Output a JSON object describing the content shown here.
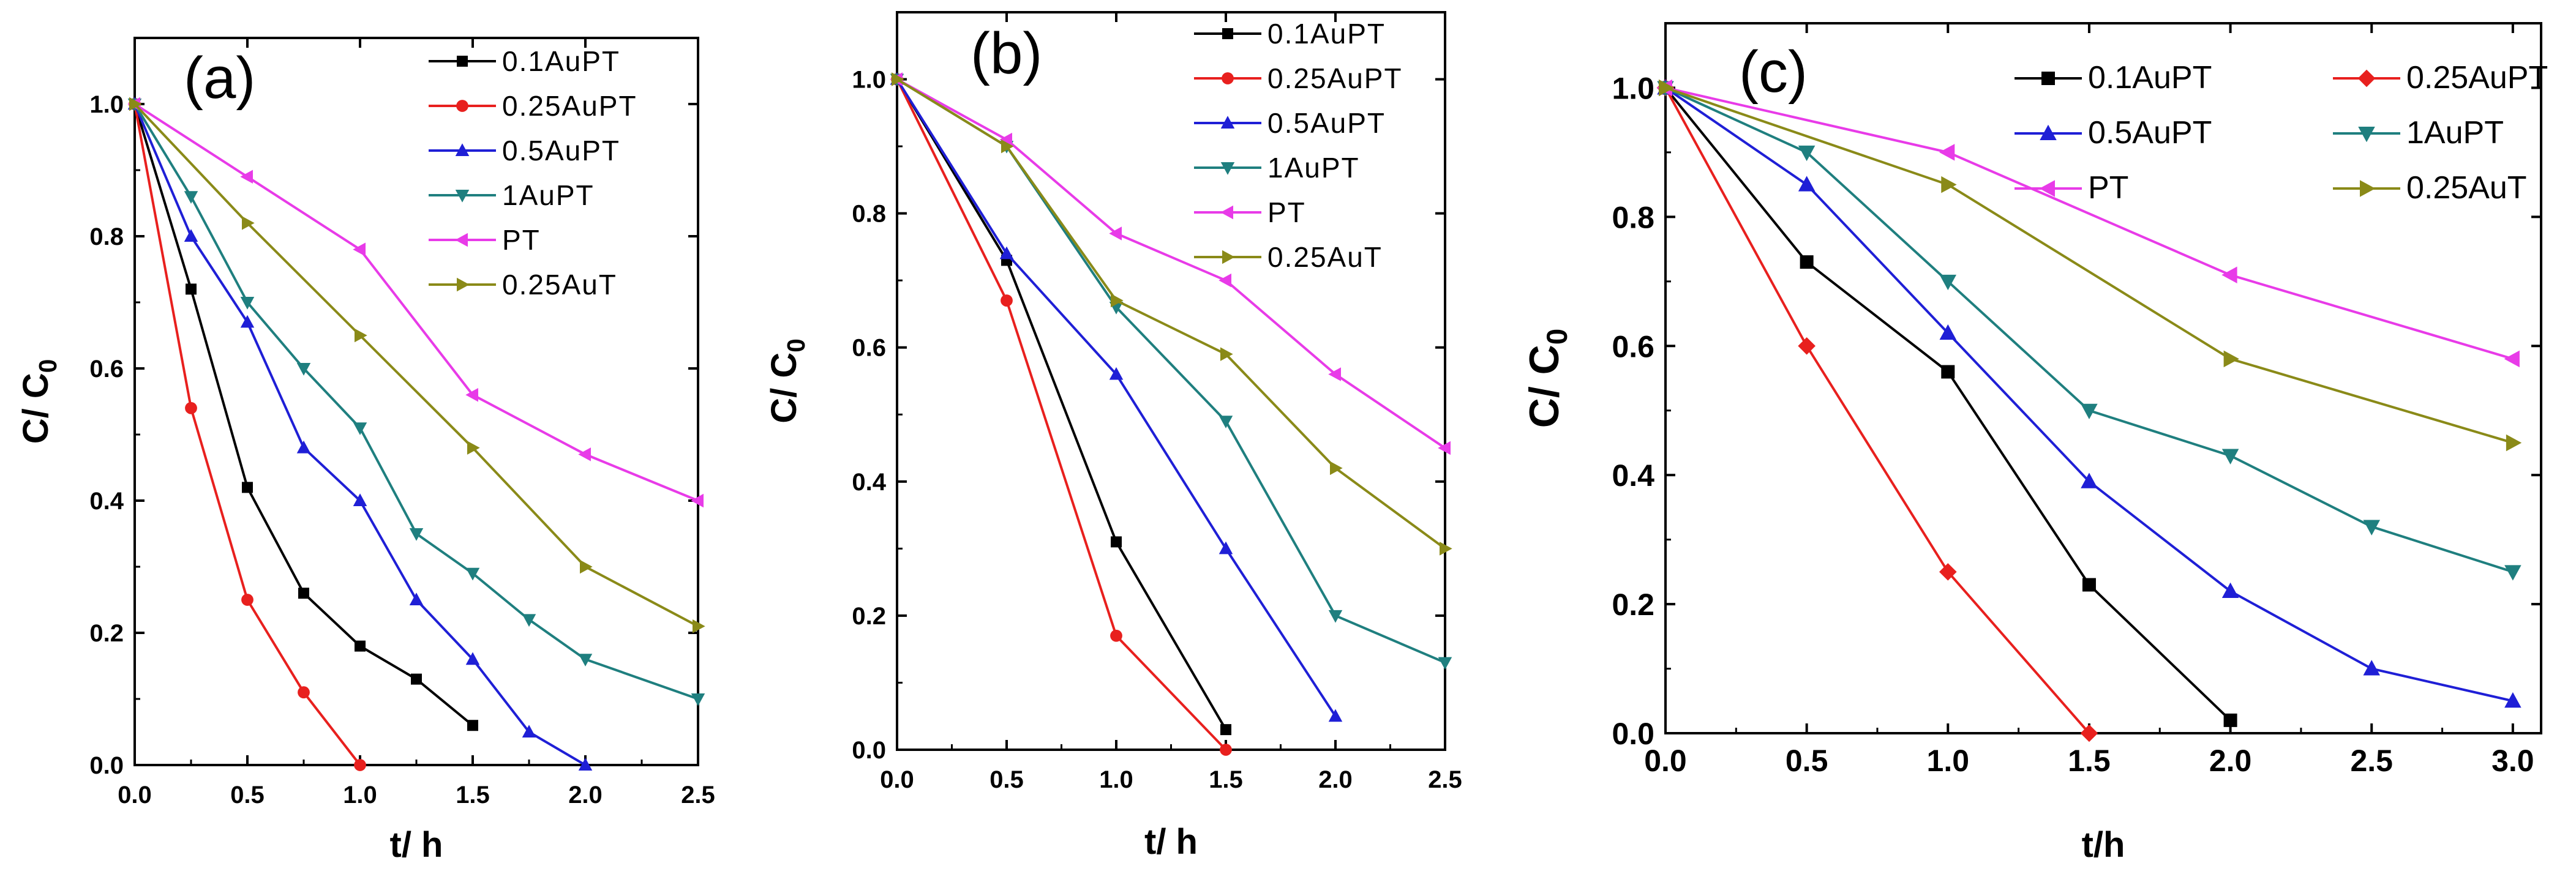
{
  "chart_data": [
    {
      "type": "line",
      "panel_label": "(a)",
      "xlabel": "t/ h",
      "ylabel": "C/ C",
      "ylabel_sub": "0",
      "xlim": [
        0,
        2.5
      ],
      "ylim": [
        0,
        1.1
      ],
      "xticks": [
        0.0,
        0.5,
        1.0,
        1.5,
        2.0,
        2.5
      ],
      "xtick_labels": [
        "0.0",
        "0.5",
        "1.0",
        "1.5",
        "2.0",
        "2.5"
      ],
      "yticks": [
        0.0,
        0.2,
        0.4,
        0.6,
        0.8,
        1.0
      ],
      "ytick_labels": [
        "0.0",
        "0.2",
        "0.4",
        "0.6",
        "0.8",
        "1.0"
      ],
      "legend_position": "top-right",
      "series": [
        {
          "name": "0.1AuPT",
          "color": "#000000",
          "marker": "square",
          "x": [
            0,
            0.25,
            0.5,
            0.75,
            1.0,
            1.25,
            1.5
          ],
          "y": [
            1.0,
            0.72,
            0.42,
            0.26,
            0.18,
            0.13,
            0.06
          ]
        },
        {
          "name": "0.25AuPT",
          "color": "#e8201e",
          "marker": "circle",
          "x": [
            0,
            0.25,
            0.5,
            0.75,
            1.0
          ],
          "y": [
            1.0,
            0.54,
            0.25,
            0.11,
            0.0
          ]
        },
        {
          "name": "0.5AuPT",
          "color": "#1f1fd6",
          "marker": "triangle-up",
          "x": [
            0,
            0.25,
            0.5,
            0.75,
            1.0,
            1.25,
            1.5,
            1.75,
            2.0
          ],
          "y": [
            1.0,
            0.8,
            0.67,
            0.48,
            0.4,
            0.25,
            0.16,
            0.05,
            0.0
          ]
        },
        {
          "name": "1AuPT",
          "color": "#1f7f7f",
          "marker": "triangle-down",
          "x": [
            0,
            0.25,
            0.5,
            0.75,
            1.0,
            1.25,
            1.5,
            1.75,
            2.0,
            2.5
          ],
          "y": [
            1.0,
            0.86,
            0.7,
            0.6,
            0.51,
            0.35,
            0.29,
            0.22,
            0.16,
            0.1
          ]
        },
        {
          "name": "PT",
          "color": "#e83be8",
          "marker": "triangle-left",
          "x": [
            0,
            0.5,
            1.0,
            1.5,
            2.0,
            2.5
          ],
          "y": [
            1.0,
            0.89,
            0.78,
            0.56,
            0.47,
            0.4
          ]
        },
        {
          "name": "0.25AuT",
          "color": "#8a8a18",
          "marker": "triangle-right",
          "x": [
            0,
            0.5,
            1.0,
            1.5,
            2.0,
            2.5
          ],
          "y": [
            1.0,
            0.82,
            0.65,
            0.48,
            0.3,
            0.21
          ]
        }
      ]
    },
    {
      "type": "line",
      "panel_label": "(b)",
      "xlabel": "t/ h",
      "ylabel": "C/ C",
      "ylabel_sub": "0",
      "xlim": [
        0,
        2.5
      ],
      "ylim": [
        0,
        1.1
      ],
      "xticks": [
        0.0,
        0.5,
        1.0,
        1.5,
        2.0,
        2.5
      ],
      "xtick_labels": [
        "0.0",
        "0.5",
        "1.0",
        "1.5",
        "2.0",
        "2.5"
      ],
      "yticks": [
        0.0,
        0.2,
        0.4,
        0.6,
        0.8,
        1.0
      ],
      "ytick_labels": [
        "0.0",
        "0.2",
        "0.4",
        "0.6",
        "0.8",
        "1.0"
      ],
      "legend_position": "top-right",
      "series": [
        {
          "name": "0.1AuPT",
          "color": "#000000",
          "marker": "square",
          "x": [
            0,
            0.5,
            1.0,
            1.5
          ],
          "y": [
            1.0,
            0.73,
            0.31,
            0.03
          ]
        },
        {
          "name": "0.25AuPT",
          "color": "#e8201e",
          "marker": "circle",
          "x": [
            0,
            0.5,
            1.0,
            1.5
          ],
          "y": [
            1.0,
            0.67,
            0.17,
            0.0
          ]
        },
        {
          "name": "0.5AuPT",
          "color": "#1f1fd6",
          "marker": "triangle-up",
          "x": [
            0,
            0.5,
            1.0,
            1.5,
            2.0
          ],
          "y": [
            1.0,
            0.74,
            0.56,
            0.3,
            0.05
          ]
        },
        {
          "name": "1AuPT",
          "color": "#1f7f7f",
          "marker": "triangle-down",
          "x": [
            0,
            0.5,
            1.0,
            1.5,
            2.0,
            2.5
          ],
          "y": [
            1.0,
            0.9,
            0.66,
            0.49,
            0.2,
            0.13
          ]
        },
        {
          "name": "PT",
          "color": "#e83be8",
          "marker": "triangle-left",
          "x": [
            0,
            0.5,
            1.0,
            1.5,
            2.0,
            2.5
          ],
          "y": [
            1.0,
            0.91,
            0.77,
            0.7,
            0.56,
            0.45
          ]
        },
        {
          "name": "0.25AuT",
          "color": "#8a8a18",
          "marker": "triangle-right",
          "x": [
            0,
            0.5,
            1.0,
            1.5,
            2.0,
            2.5
          ],
          "y": [
            1.0,
            0.9,
            0.67,
            0.59,
            0.42,
            0.3
          ]
        }
      ]
    },
    {
      "type": "line",
      "panel_label": "(c)",
      "xlabel": "t/h",
      "ylabel": "C/ C",
      "ylabel_sub": "0",
      "xlim": [
        0,
        3.1
      ],
      "ylim": [
        0,
        1.1
      ],
      "xticks": [
        0.0,
        0.5,
        1.0,
        1.5,
        2.0,
        2.5,
        3.0
      ],
      "xtick_labels": [
        "0.0",
        "0.5",
        "1.0",
        "1.5",
        "2.0",
        "2.5",
        "3.0"
      ],
      "yticks": [
        0.0,
        0.2,
        0.4,
        0.6,
        0.8,
        1.0
      ],
      "ytick_labels": [
        "0.0",
        "0.2",
        "0.4",
        "0.6",
        "0.8",
        "1.0"
      ],
      "legend_position": "top, two columns",
      "series": [
        {
          "name": "0.1AuPT",
          "color": "#000000",
          "marker": "square",
          "x": [
            0,
            0.5,
            1.0,
            1.5,
            2.0
          ],
          "y": [
            1.0,
            0.73,
            0.56,
            0.23,
            0.02
          ]
        },
        {
          "name": "0.25AuPT",
          "color": "#e8201e",
          "marker": "diamond",
          "x": [
            0,
            0.5,
            1.0,
            1.5
          ],
          "y": [
            1.0,
            0.6,
            0.25,
            0.0
          ]
        },
        {
          "name": "0.5AuPT",
          "color": "#1f1fd6",
          "marker": "triangle-up",
          "x": [
            0,
            0.5,
            1.0,
            1.5,
            2.0,
            2.5,
            3.0
          ],
          "y": [
            1.0,
            0.85,
            0.62,
            0.39,
            0.22,
            0.1,
            0.05
          ]
        },
        {
          "name": "1AuPT",
          "color": "#1f7f7f",
          "marker": "triangle-down",
          "x": [
            0,
            0.5,
            1.0,
            1.5,
            2.0,
            2.5,
            3.0
          ],
          "y": [
            1.0,
            0.9,
            0.7,
            0.5,
            0.43,
            0.32,
            0.25
          ]
        },
        {
          "name": "PT",
          "color": "#e83be8",
          "marker": "triangle-left",
          "x": [
            0,
            1.0,
            2.0,
            3.0
          ],
          "y": [
            1.0,
            0.9,
            0.71,
            0.58
          ]
        },
        {
          "name": "0.25AuT",
          "color": "#8a8a18",
          "marker": "triangle-right",
          "x": [
            0,
            1.0,
            2.0,
            3.0
          ],
          "y": [
            1.0,
            0.85,
            0.58,
            0.45
          ]
        }
      ]
    }
  ]
}
